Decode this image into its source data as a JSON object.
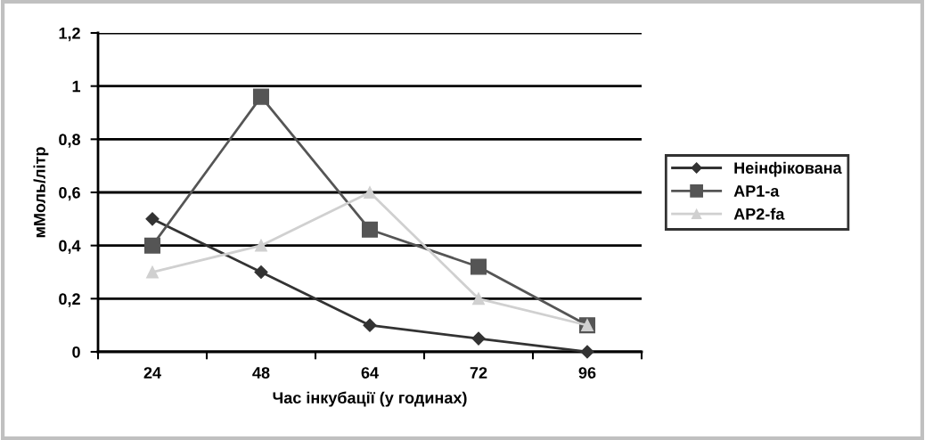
{
  "chart_data": {
    "type": "line",
    "xlabel": "Час інкубації (у годинах)",
    "ylabel": "мМоль/літр",
    "categories": [
      "24",
      "48",
      "64",
      "72",
      "96"
    ],
    "series": [
      {
        "name": "Неінфікована",
        "color": "#333333",
        "marker": "diamond",
        "values": [
          0.5,
          0.3,
          0.1,
          0.05,
          0
        ]
      },
      {
        "name": "АР1-а",
        "color": "#555555",
        "marker": "square",
        "values": [
          0.4,
          0.96,
          0.46,
          0.32,
          0.1
        ]
      },
      {
        "name": "АР2-fa",
        "color": "#d0d0d0",
        "marker": "triangle",
        "values": [
          0.3,
          0.4,
          0.6,
          0.2,
          0.1
        ]
      }
    ],
    "ylim": [
      0,
      1.2
    ],
    "yticks": [
      0,
      {
        "value": 0.2,
        "label": "0,2"
      },
      {
        "value": 0.4,
        "label": "0,4"
      },
      {
        "value": 0.6,
        "label": "0,6"
      },
      {
        "value": 0.8,
        "label": "0,8"
      },
      1,
      {
        "value": 1.2,
        "label": "1,2"
      }
    ],
    "grid": "y",
    "legend": "right",
    "line_style": "solid"
  }
}
